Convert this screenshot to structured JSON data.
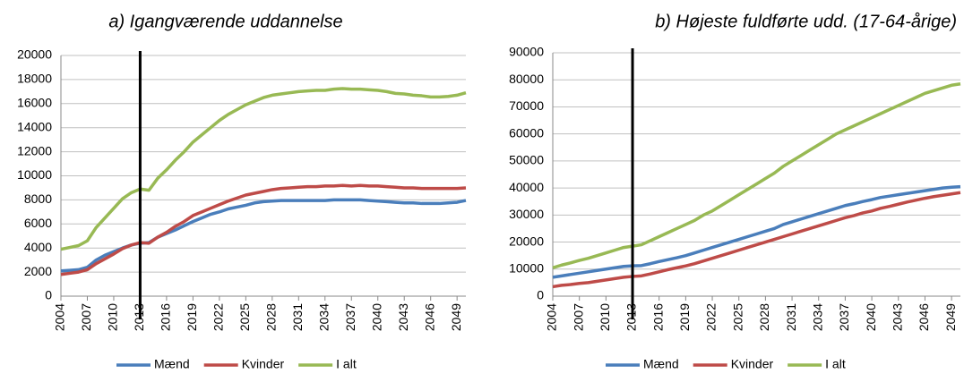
{
  "chart_data": [
    {
      "type": "line",
      "title": "a) Igangværende uddannelse",
      "x": [
        2004,
        2005,
        2006,
        2007,
        2008,
        2009,
        2010,
        2011,
        2012,
        2013,
        2014,
        2015,
        2016,
        2017,
        2018,
        2019,
        2020,
        2021,
        2022,
        2023,
        2024,
        2025,
        2026,
        2027,
        2028,
        2029,
        2030,
        2031,
        2032,
        2033,
        2034,
        2035,
        2036,
        2037,
        2038,
        2039,
        2040,
        2041,
        2042,
        2043,
        2044,
        2045,
        2046,
        2047,
        2048,
        2049,
        2050
      ],
      "xlim": [
        2004,
        2050
      ],
      "xticks": [
        2004,
        2007,
        2010,
        2013,
        2016,
        2019,
        2022,
        2025,
        2028,
        2031,
        2034,
        2037,
        2040,
        2043,
        2046,
        2049
      ],
      "ylim": [
        0,
        20000
      ],
      "yticks": [
        0,
        2000,
        4000,
        6000,
        8000,
        10000,
        12000,
        14000,
        16000,
        18000,
        20000
      ],
      "grid": true,
      "legend": "bottom",
      "vline": 2013,
      "series": [
        {
          "name": "Mænd",
          "color": "#4a7ebb",
          "values": [
            2100,
            2150,
            2200,
            2400,
            3000,
            3400,
            3700,
            4000,
            4250,
            4400,
            4450,
            4900,
            5200,
            5500,
            5850,
            6200,
            6500,
            6800,
            7000,
            7250,
            7400,
            7550,
            7750,
            7850,
            7900,
            7950,
            7950,
            7950,
            7950,
            7950,
            7950,
            8000,
            8000,
            8000,
            8000,
            7950,
            7900,
            7850,
            7800,
            7750,
            7750,
            7700,
            7700,
            7700,
            7750,
            7800,
            7950
          ]
        },
        {
          "name": "Kvinder",
          "color": "#be4b48",
          "values": [
            1800,
            1900,
            2000,
            2200,
            2700,
            3100,
            3500,
            3950,
            4250,
            4450,
            4400,
            4900,
            5300,
            5800,
            6200,
            6700,
            7000,
            7300,
            7600,
            7900,
            8150,
            8400,
            8550,
            8700,
            8850,
            8950,
            9000,
            9050,
            9100,
            9100,
            9150,
            9150,
            9200,
            9150,
            9200,
            9150,
            9150,
            9100,
            9050,
            9000,
            9000,
            8950,
            8950,
            8950,
            8950,
            8950,
            9000
          ]
        },
        {
          "name": "I alt",
          "color": "#98b954",
          "values": [
            3900,
            4050,
            4200,
            4600,
            5700,
            6500,
            7300,
            8100,
            8600,
            8900,
            8800,
            9800,
            10500,
            11300,
            12000,
            12800,
            13400,
            14000,
            14600,
            15100,
            15500,
            15900,
            16200,
            16500,
            16700,
            16800,
            16900,
            17000,
            17050,
            17100,
            17100,
            17200,
            17250,
            17200,
            17200,
            17150,
            17100,
            17000,
            16850,
            16800,
            16700,
            16650,
            16550,
            16550,
            16600,
            16700,
            16900
          ]
        }
      ]
    },
    {
      "type": "line",
      "title": "b) Højeste fuldførte udd. (17-64-årige)",
      "x": [
        2004,
        2005,
        2006,
        2007,
        2008,
        2009,
        2010,
        2011,
        2012,
        2013,
        2014,
        2015,
        2016,
        2017,
        2018,
        2019,
        2020,
        2021,
        2022,
        2023,
        2024,
        2025,
        2026,
        2027,
        2028,
        2029,
        2030,
        2031,
        2032,
        2033,
        2034,
        2035,
        2036,
        2037,
        2038,
        2039,
        2040,
        2041,
        2042,
        2043,
        2044,
        2045,
        2046,
        2047,
        2048,
        2049,
        2050
      ],
      "xlim": [
        2004,
        2050
      ],
      "xticks": [
        2004,
        2007,
        2010,
        2013,
        2016,
        2019,
        2022,
        2025,
        2028,
        2031,
        2034,
        2037,
        2040,
        2043,
        2046,
        2049
      ],
      "ylim": [
        0,
        90000
      ],
      "yticks": [
        0,
        10000,
        20000,
        30000,
        40000,
        50000,
        60000,
        70000,
        80000,
        90000
      ],
      "grid": true,
      "legend": "bottom",
      "vline": 2013,
      "series": [
        {
          "name": "Mænd",
          "color": "#4a7ebb",
          "values": [
            7000,
            7500,
            8000,
            8500,
            9000,
            9500,
            10000,
            10500,
            11000,
            11200,
            11300,
            12000,
            12800,
            13500,
            14200,
            15000,
            16000,
            17000,
            18000,
            19000,
            20000,
            21000,
            22000,
            23000,
            24000,
            25000,
            26500,
            27500,
            28500,
            29500,
            30500,
            31500,
            32500,
            33500,
            34200,
            35000,
            35700,
            36500,
            37000,
            37500,
            38000,
            38500,
            39000,
            39500,
            40000,
            40300,
            40500
          ]
        },
        {
          "name": "Kvinder",
          "color": "#be4b48",
          "values": [
            3500,
            4000,
            4300,
            4700,
            5000,
            5500,
            6000,
            6500,
            7000,
            7300,
            7500,
            8200,
            9000,
            9800,
            10500,
            11200,
            12000,
            13000,
            14000,
            15000,
            16000,
            17000,
            18000,
            19000,
            20000,
            21000,
            22000,
            23000,
            24000,
            25000,
            26000,
            27000,
            28000,
            29000,
            29800,
            30800,
            31500,
            32500,
            33200,
            34000,
            34800,
            35500,
            36200,
            36800,
            37300,
            37800,
            38300
          ]
        },
        {
          "name": "I alt",
          "color": "#98b954",
          "values": [
            10500,
            11500,
            12300,
            13200,
            14000,
            15000,
            16000,
            17000,
            18000,
            18500,
            19000,
            20500,
            22000,
            23500,
            25000,
            26500,
            28000,
            30000,
            31500,
            33500,
            35500,
            37500,
            39500,
            41500,
            43500,
            45500,
            48000,
            50000,
            52000,
            54000,
            56000,
            58000,
            60000,
            61500,
            63000,
            64500,
            66000,
            67500,
            69000,
            70500,
            72000,
            73500,
            75000,
            76000,
            77000,
            78000,
            78500
          ]
        }
      ]
    }
  ]
}
